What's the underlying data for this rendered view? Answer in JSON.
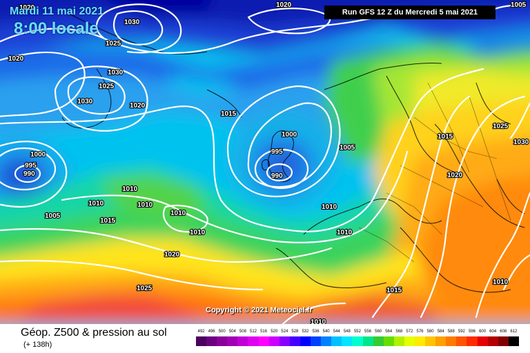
{
  "header": {
    "date": "Mardi 11 mai 2021",
    "time": "8:00 locale",
    "run": "Run GFS 12 Z du Mercredi 5 mai 2021"
  },
  "copyright": "Copyright © 2021 Meteociel.fr",
  "legend": {
    "title": "Géop. Z500 & pression au sol",
    "subtitle": "(+ 138h)",
    "scale_values": [
      "492",
      "496",
      "500",
      "504",
      "508",
      "512",
      "516",
      "520",
      "524",
      "528",
      "532",
      "536",
      "540",
      "544",
      "548",
      "552",
      "556",
      "560",
      "564",
      "568",
      "572",
      "576",
      "580",
      "584",
      "588",
      "592",
      "596",
      "600",
      "604",
      "608",
      "612"
    ],
    "scale_colors": [
      "#4b0060",
      "#6b0080",
      "#8a0099",
      "#a000b3",
      "#c000d6",
      "#e000f0",
      "#ff00ff",
      "#cc00ff",
      "#8800ff",
      "#4400ff",
      "#0000ff",
      "#0040ff",
      "#0080ff",
      "#00c0ff",
      "#00e6ff",
      "#00ffcc",
      "#00e68a",
      "#33cc33",
      "#66dd00",
      "#b3f000",
      "#e6ff00",
      "#ffea00",
      "#ffc400",
      "#ff9f00",
      "#ff7a00",
      "#ff5500",
      "#ff2a00",
      "#e60000",
      "#b30000",
      "#800000",
      "#000000"
    ]
  },
  "isobars": [
    {
      "value": "1020"
    },
    {
      "value": "1005"
    },
    {
      "value": "1030"
    },
    {
      "value": "1020"
    },
    {
      "value": "1025"
    },
    {
      "value": "1020"
    },
    {
      "value": "1030"
    },
    {
      "value": "1025"
    },
    {
      "value": "1030"
    },
    {
      "value": "1020"
    },
    {
      "value": "1015"
    },
    {
      "value": "1000"
    },
    {
      "value": "995"
    },
    {
      "value": "990"
    },
    {
      "value": "1005"
    },
    {
      "value": "1000"
    },
    {
      "value": "995"
    },
    {
      "value": "990"
    },
    {
      "value": "1010"
    },
    {
      "value": "1010"
    },
    {
      "value": "1010"
    },
    {
      "value": "1005"
    },
    {
      "value": "1015"
    },
    {
      "value": "1010"
    },
    {
      "value": "1010"
    },
    {
      "value": "1020"
    },
    {
      "value": "1025"
    },
    {
      "value": "1010"
    },
    {
      "value": "1010"
    },
    {
      "value": "1025"
    },
    {
      "value": "1015"
    },
    {
      "value": "1020"
    },
    {
      "value": "1030"
    },
    {
      "value": "1015"
    },
    {
      "value": "1010"
    },
    {
      "value": "1010"
    }
  ]
}
